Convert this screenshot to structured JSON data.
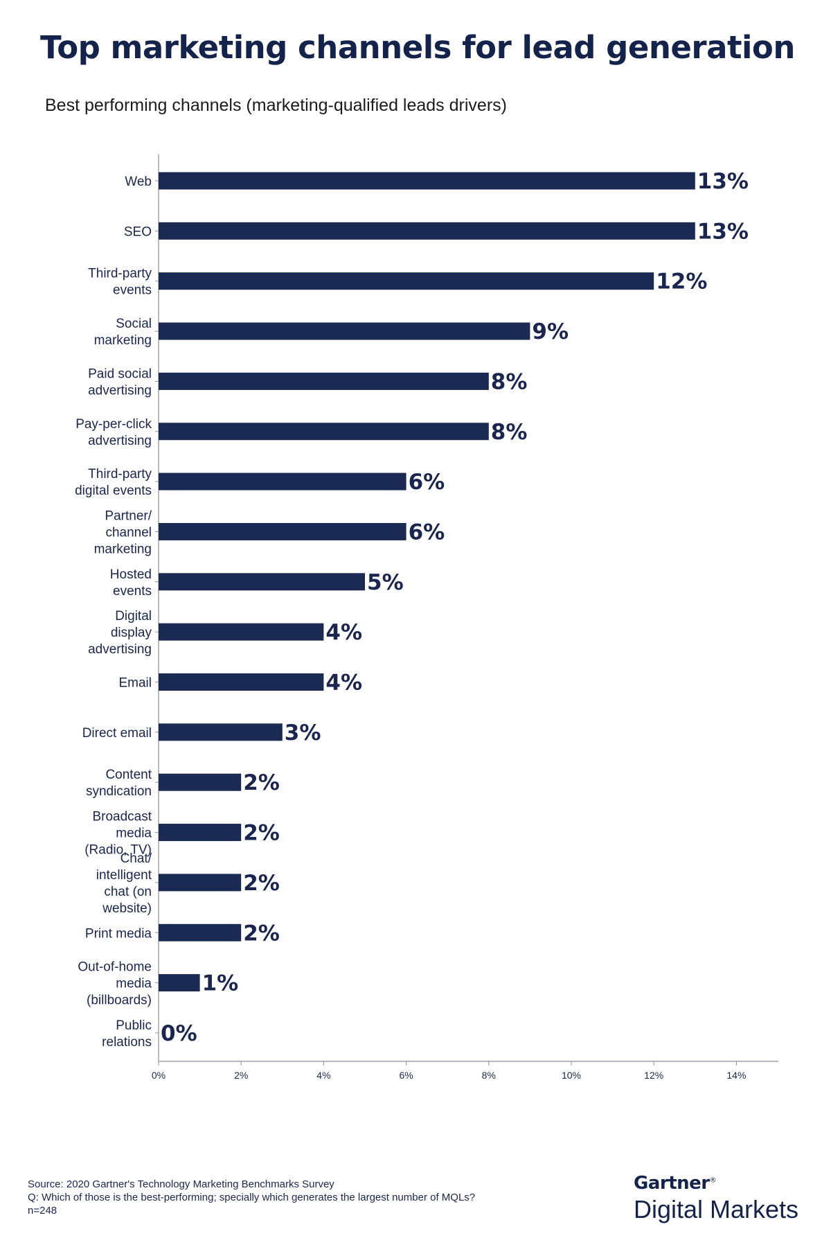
{
  "title": "Top marketing channels for lead generation",
  "subtitle": "Best performing channels (marketing-qualified leads drivers)",
  "chart_data": {
    "type": "bar",
    "orientation": "horizontal",
    "categories": [
      "Web",
      "SEO",
      "Third-party events",
      "Social marketing",
      "Paid social advertising",
      "Pay-per-click advertising",
      "Third-party digital events",
      "Partner/ channel marketing",
      "Hosted events",
      "Digital display advertising",
      "Email",
      "Direct email",
      "Content syndication",
      "Broadcast media (Radio, TV)",
      "Chat/ intelligent chat (on website)",
      "Print media",
      "Out-of-home media (billboards)",
      "Public relations"
    ],
    "category_lines": [
      [
        "Web"
      ],
      [
        "SEO"
      ],
      [
        "Third-party",
        "events"
      ],
      [
        "Social",
        "marketing"
      ],
      [
        "Paid social",
        "advertising"
      ],
      [
        "Pay-per-click",
        "advertising"
      ],
      [
        "Third-party",
        "digital events"
      ],
      [
        "Partner/",
        "channel",
        "marketing"
      ],
      [
        "Hosted",
        "events"
      ],
      [
        "Digital",
        "display",
        "advertising"
      ],
      [
        "Email"
      ],
      [
        "Direct email"
      ],
      [
        "Content",
        "syndication"
      ],
      [
        "Broadcast",
        "media",
        "(Radio, TV)"
      ],
      [
        "Chat/",
        "intelligent",
        "chat (on",
        "website)"
      ],
      [
        "Print media"
      ],
      [
        "Out-of-home",
        "media",
        "(billboards)"
      ],
      [
        "Public",
        "relations"
      ]
    ],
    "values": [
      13,
      13,
      12,
      9,
      8,
      8,
      6,
      6,
      5,
      4,
      4,
      3,
      2,
      2,
      2,
      2,
      1,
      0
    ],
    "value_labels": [
      "13%",
      "13%",
      "12%",
      "9%",
      "8%",
      "8%",
      "6%",
      "6%",
      "5%",
      "4%",
      "4%",
      "3%",
      "2%",
      "2%",
      "2%",
      "2%",
      "1%",
      "0%"
    ],
    "xlim": [
      0,
      15
    ],
    "x_ticks": [
      0,
      2,
      4,
      6,
      8,
      10,
      12,
      14
    ],
    "x_tick_labels": [
      "0%",
      "2%",
      "4%",
      "6%",
      "8%",
      "10%",
      "12%",
      "14%"
    ],
    "xlabel": "",
    "ylabel": "",
    "grid": false,
    "legend": "none",
    "bar_color": "#1b2a52"
  },
  "footer": {
    "source": "Source: 2020 Gartner's Technology Marketing Benchmarks Survey",
    "question": "Q: Which of those is the best-performing; specially which generates the largest number of MQLs?",
    "sample": "n=248"
  },
  "brand": {
    "name": "Gartner",
    "mark": "®",
    "product": "Digital Markets"
  }
}
